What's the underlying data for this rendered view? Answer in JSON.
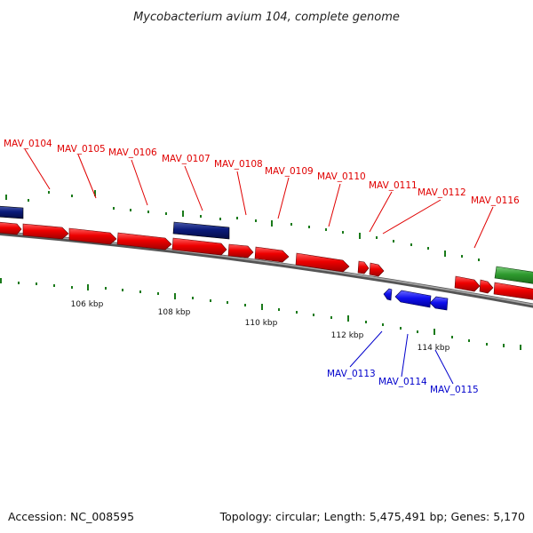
{
  "title": "Mycobacterium avium 104, complete genome",
  "footer": {
    "accession": "Accession: NC_008595",
    "topology": "Topology: circular; Length: 5,475,491 bp; Genes: 5,170"
  },
  "scale_labels": [
    "106 kbp",
    "108 kbp",
    "110 kbp",
    "112 kbp",
    "114 kbp"
  ],
  "forward_gene_labels": [
    "MAV_0104",
    "MAV_0105",
    "MAV_0106",
    "MAV_0107",
    "MAV_0108",
    "MAV_0109",
    "MAV_0110",
    "MAV_0111",
    "MAV_0112",
    "MAV_0116"
  ],
  "reverse_gene_labels": [
    "MAV_0113",
    "MAV_0114",
    "MAV_0115"
  ],
  "colors": {
    "forward_cds": "#ee0000",
    "reverse_cds": "#0000dd",
    "dark_feature": "#0a1a7a",
    "green_feature": "#2e9a2e",
    "tick": "#1a7a1a",
    "backbone": "#888888",
    "label_red": "#e00000",
    "label_blue": "#0000cc"
  }
}
